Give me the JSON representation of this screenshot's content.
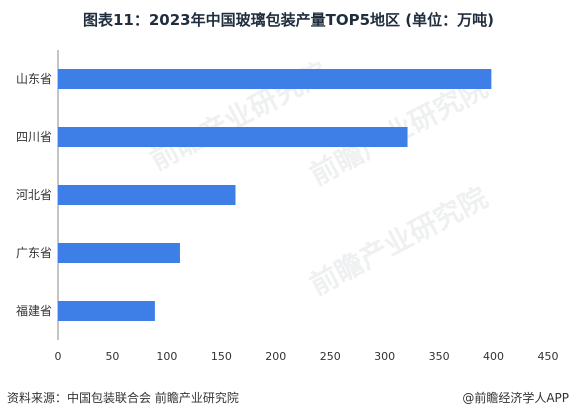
{
  "title": "图表11：2023年中国玻璃包装产量TOP5地区 (单位：万吨)",
  "footer": {
    "source": "资料来源：中国包装联合会 前瞻产业研究院",
    "brand": "@前瞻经济学人APP"
  },
  "watermark": "前瞻产业研究院",
  "colors": {
    "bar": "#3d7fe6",
    "axis": "#888888",
    "text": "#333333"
  },
  "chart_data": {
    "type": "bar",
    "orientation": "horizontal",
    "title": "图表11：2023年中国玻璃包装产量TOP5地区 (单位：万吨)",
    "categories": [
      "山东省",
      "四川省",
      "河北省",
      "广东省",
      "福建省"
    ],
    "values": [
      398,
      321,
      163,
      112,
      89
    ],
    "xlim": [
      0,
      450
    ],
    "xticks": [
      0,
      50,
      100,
      150,
      200,
      250,
      300,
      350,
      400,
      450
    ],
    "xlabel": "",
    "ylabel": "",
    "grid": false,
    "legend": "none"
  }
}
